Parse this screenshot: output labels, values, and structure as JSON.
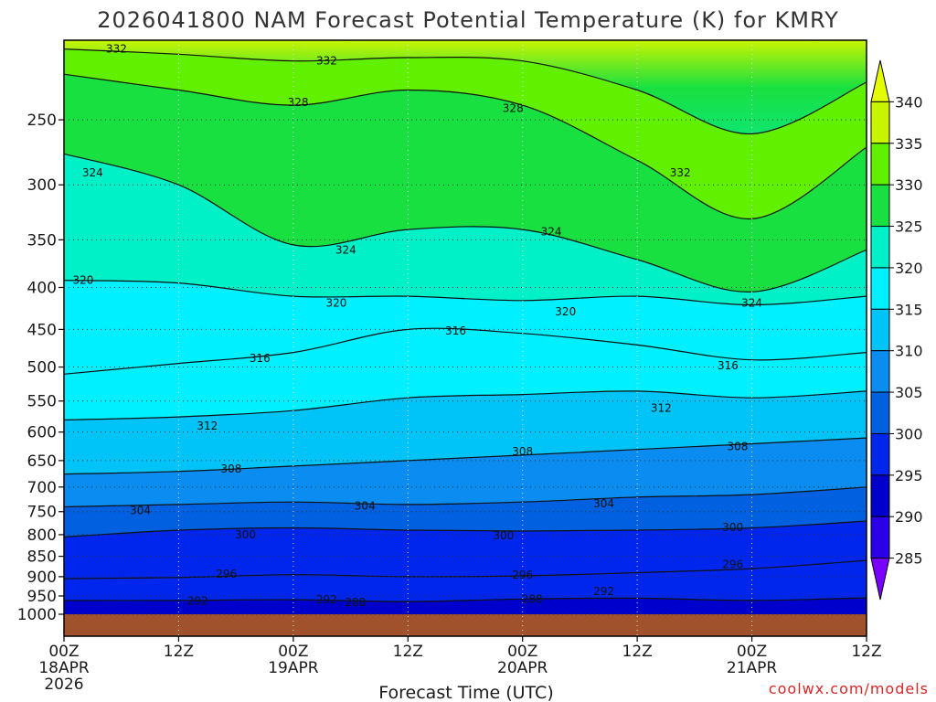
{
  "chart_data": {
    "type": "heatmap",
    "title": "2026041800 NAM Forecast Potential Temperature (K) for KMRY",
    "xlabel": "Forecast Time (UTC)",
    "ylabel": "",
    "x_ticks": [
      {
        "hour": 0,
        "line1": "00Z",
        "line2": "18APR",
        "line3": "2026"
      },
      {
        "hour": 12,
        "line1": "12Z",
        "line2": "",
        "line3": ""
      },
      {
        "hour": 24,
        "line1": "00Z",
        "line2": "19APR",
        "line3": ""
      },
      {
        "hour": 36,
        "line1": "12Z",
        "line2": "",
        "line3": ""
      },
      {
        "hour": 48,
        "line1": "00Z",
        "line2": "20APR",
        "line3": ""
      },
      {
        "hour": 60,
        "line1": "12Z",
        "line2": "",
        "line3": ""
      },
      {
        "hour": 72,
        "line1": "00Z",
        "line2": "21APR",
        "line3": ""
      },
      {
        "hour": 84,
        "line1": "12Z",
        "line2": "",
        "line3": ""
      }
    ],
    "xlim": [
      0,
      84
    ],
    "y_ticks": [
      "250",
      "300",
      "350",
      "400",
      "450",
      "500",
      "550",
      "600",
      "650",
      "700",
      "750",
      "800",
      "850",
      "900",
      "950",
      "1000"
    ],
    "ylim_hpa": [
      1000,
      200
    ],
    "colorbar": {
      "levels": [
        "285",
        "290",
        "295",
        "300",
        "305",
        "310",
        "315",
        "320",
        "325",
        "330",
        "335",
        "340"
      ],
      "colors": [
        "#7a00ff",
        "#2a00e8",
        "#0000cc",
        "#0026ee",
        "#0060e0",
        "#0a8cf0",
        "#00c4f8",
        "#00f0ff",
        "#00f0c8",
        "#18e040",
        "#60f000",
        "#c8f400",
        "#e4fc00"
      ]
    },
    "series": [
      {
        "name": "292",
        "values": [
          [
            0,
            962
          ],
          [
            12,
            962
          ],
          [
            24,
            960
          ],
          [
            36,
            965
          ],
          [
            48,
            958
          ],
          [
            60,
            956
          ],
          [
            72,
            962
          ],
          [
            84,
            955
          ]
        ]
      },
      {
        "name": "296",
        "values": [
          [
            0,
            905
          ],
          [
            12,
            902
          ],
          [
            24,
            895
          ],
          [
            36,
            900
          ],
          [
            48,
            898
          ],
          [
            60,
            890
          ],
          [
            72,
            880
          ],
          [
            84,
            860
          ]
        ]
      },
      {
        "name": "300",
        "values": [
          [
            0,
            805
          ],
          [
            12,
            790
          ],
          [
            24,
            785
          ],
          [
            36,
            790
          ],
          [
            48,
            792
          ],
          [
            60,
            790
          ],
          [
            72,
            785
          ],
          [
            84,
            770
          ]
        ]
      },
      {
        "name": "304",
        "values": [
          [
            0,
            740
          ],
          [
            12,
            735
          ],
          [
            24,
            730
          ],
          [
            36,
            735
          ],
          [
            48,
            730
          ],
          [
            60,
            720
          ],
          [
            72,
            715
          ],
          [
            84,
            700
          ]
        ]
      },
      {
        "name": "308",
        "values": [
          [
            0,
            675
          ],
          [
            12,
            670
          ],
          [
            24,
            660
          ],
          [
            36,
            650
          ],
          [
            48,
            640
          ],
          [
            60,
            630
          ],
          [
            72,
            620
          ],
          [
            84,
            610
          ]
        ]
      },
      {
        "name": "312",
        "values": [
          [
            0,
            580
          ],
          [
            12,
            575
          ],
          [
            24,
            565
          ],
          [
            36,
            545
          ],
          [
            48,
            540
          ],
          [
            60,
            535
          ],
          [
            72,
            545
          ],
          [
            84,
            535
          ]
        ]
      },
      {
        "name": "316",
        "values": [
          [
            0,
            510
          ],
          [
            12,
            495
          ],
          [
            24,
            480
          ],
          [
            36,
            450
          ],
          [
            48,
            455
          ],
          [
            60,
            470
          ],
          [
            72,
            490
          ],
          [
            84,
            480
          ]
        ]
      },
      {
        "name": "320",
        "values": [
          [
            0,
            392
          ],
          [
            12,
            395
          ],
          [
            24,
            410
          ],
          [
            36,
            410
          ],
          [
            48,
            415
          ],
          [
            60,
            410
          ],
          [
            72,
            420
          ],
          [
            84,
            410
          ]
        ]
      },
      {
        "name": "324",
        "values": [
          [
            0,
            275
          ],
          [
            12,
            300
          ],
          [
            24,
            355
          ],
          [
            36,
            340
          ],
          [
            48,
            340
          ],
          [
            60,
            370
          ],
          [
            72,
            405
          ],
          [
            84,
            360
          ]
        ]
      },
      {
        "name": "328",
        "values": [
          [
            0,
            220
          ],
          [
            12,
            230
          ],
          [
            24,
            240
          ],
          [
            36,
            230
          ],
          [
            48,
            240
          ],
          [
            60,
            280
          ],
          [
            72,
            330
          ],
          [
            84,
            270
          ]
        ]
      },
      {
        "name": "332",
        "values": [
          [
            0,
            205
          ],
          [
            12,
            208
          ],
          [
            24,
            212
          ],
          [
            36,
            210
          ],
          [
            48,
            212
          ],
          [
            60,
            230
          ],
          [
            72,
            260
          ],
          [
            84,
            225
          ]
        ]
      }
    ],
    "contour_labels": [
      {
        "text": "332",
        "hour": 5.5,
        "hpa": 205
      },
      {
        "text": "332",
        "hour": 27.5,
        "hpa": 212
      },
      {
        "text": "328",
        "hour": 24.5,
        "hpa": 238
      },
      {
        "text": "328",
        "hour": 47,
        "hpa": 242
      },
      {
        "text": "332",
        "hour": 64.5,
        "hpa": 290
      },
      {
        "text": "324",
        "hour": 3,
        "hpa": 290
      },
      {
        "text": "324",
        "hour": 29.5,
        "hpa": 360
      },
      {
        "text": "324",
        "hour": 51,
        "hpa": 342
      },
      {
        "text": "324",
        "hour": 72,
        "hpa": 418
      },
      {
        "text": "320",
        "hour": 2,
        "hpa": 392
      },
      {
        "text": "320",
        "hour": 28.5,
        "hpa": 418
      },
      {
        "text": "320",
        "hour": 52.5,
        "hpa": 428
      },
      {
        "text": "316",
        "hour": 20.5,
        "hpa": 488
      },
      {
        "text": "316",
        "hour": 41,
        "hpa": 452
      },
      {
        "text": "316",
        "hour": 69.5,
        "hpa": 498
      },
      {
        "text": "312",
        "hour": 15,
        "hpa": 590
      },
      {
        "text": "312",
        "hour": 62.5,
        "hpa": 561
      },
      {
        "text": "308",
        "hour": 17.5,
        "hpa": 665
      },
      {
        "text": "308",
        "hour": 48,
        "hpa": 634
      },
      {
        "text": "308",
        "hour": 70.5,
        "hpa": 625
      },
      {
        "text": "304",
        "hour": 8,
        "hpa": 748
      },
      {
        "text": "304",
        "hour": 31.5,
        "hpa": 738
      },
      {
        "text": "304",
        "hour": 56.5,
        "hpa": 733
      },
      {
        "text": "300",
        "hour": 19,
        "hpa": 800
      },
      {
        "text": "300",
        "hour": 46,
        "hpa": 802
      },
      {
        "text": "300",
        "hour": 70,
        "hpa": 784
      },
      {
        "text": "296",
        "hour": 17,
        "hpa": 893
      },
      {
        "text": "296",
        "hour": 48,
        "hpa": 896
      },
      {
        "text": "296",
        "hour": 70,
        "hpa": 870
      },
      {
        "text": "292",
        "hour": 14,
        "hpa": 963
      },
      {
        "text": "292",
        "hour": 27.5,
        "hpa": 960
      },
      {
        "text": "292",
        "hour": 56.5,
        "hpa": 938
      },
      {
        "text": "288",
        "hour": 30.5,
        "hpa": 967
      },
      {
        "text": "288",
        "hour": 49,
        "hpa": 958
      }
    ]
  },
  "credit": "coolwx.com/models",
  "colors": {
    "ground": "#a0522d",
    "contour": "#111111",
    "grid": "#333333"
  }
}
